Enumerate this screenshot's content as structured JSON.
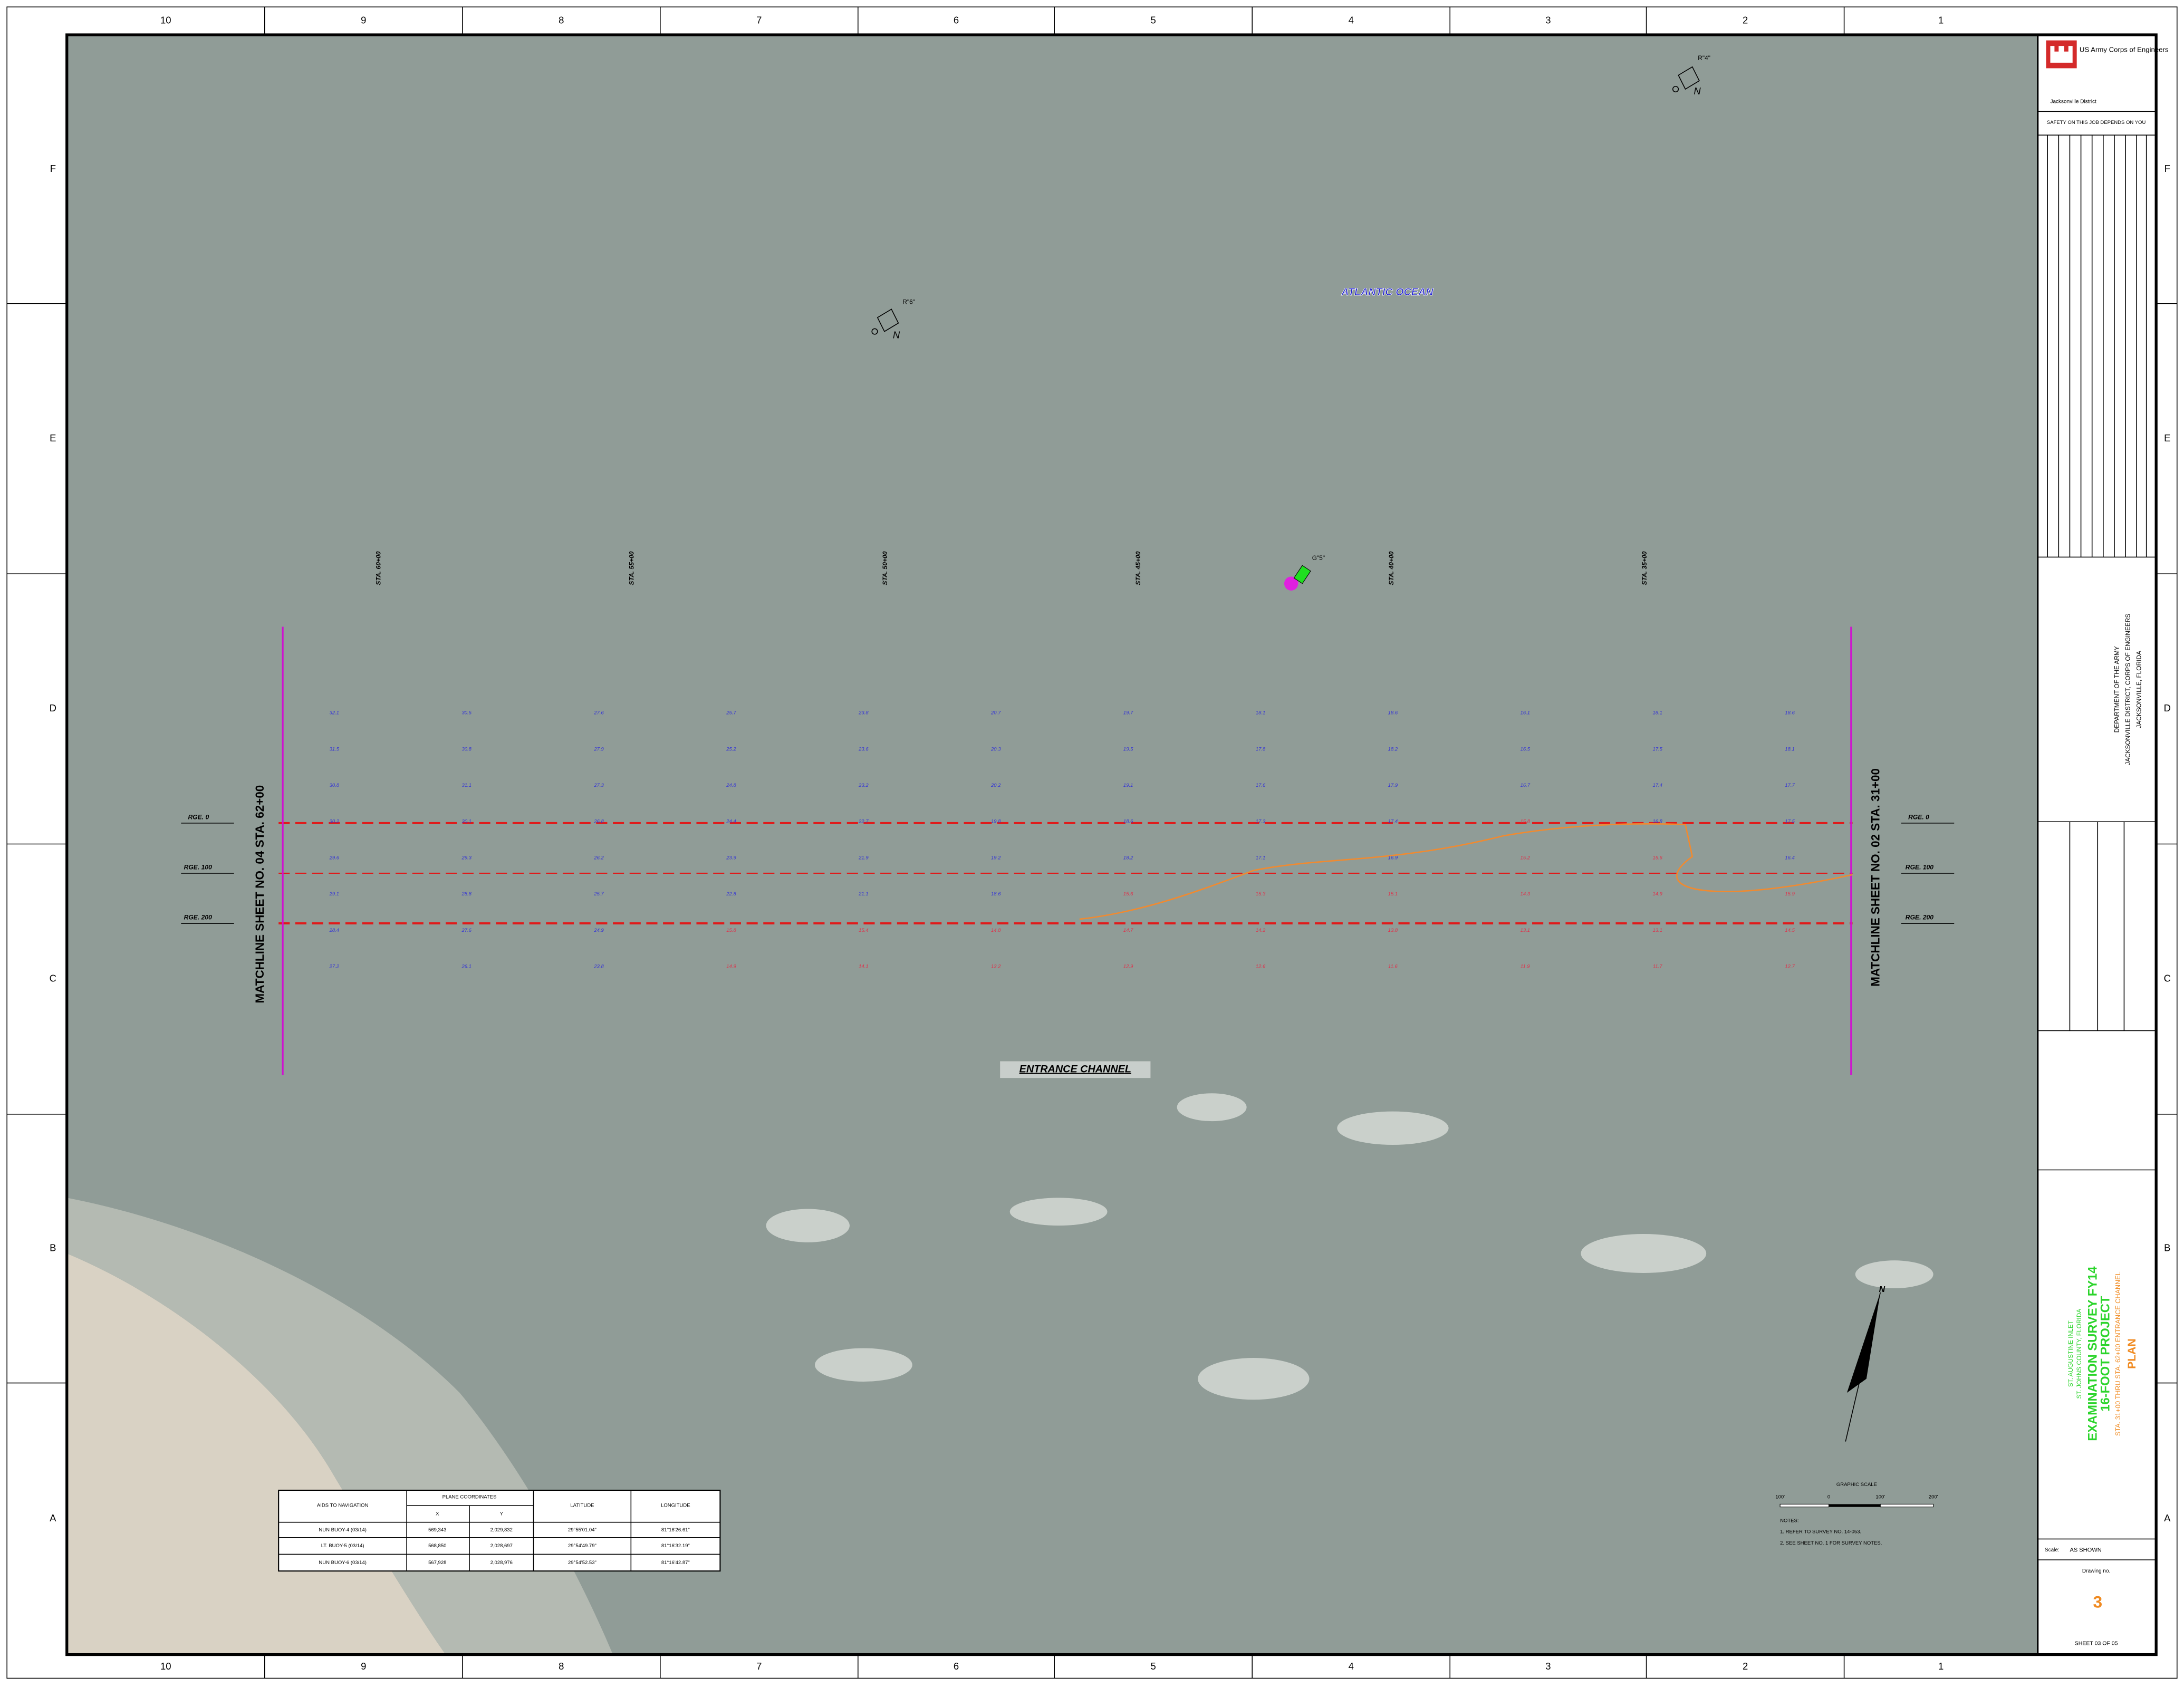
{
  "border": {
    "columns": [
      "10",
      "9",
      "8",
      "7",
      "6",
      "5",
      "4",
      "3",
      "2",
      "1"
    ],
    "rows": [
      "F",
      "E",
      "D",
      "C",
      "B",
      "A"
    ]
  },
  "map": {
    "ocean": "ATLANTIC OCEAN",
    "channel": "ENTRANCE CHANNEL",
    "stations": [
      "STA. 60+00",
      "STA. 55+00",
      "STA. 50+00",
      "STA. 45+00",
      "STA. 40+00",
      "STA. 35+00"
    ],
    "ranges": [
      "RGE. 0",
      "RGE. 100",
      "RGE. 200"
    ],
    "matchlines": [
      "MATCHLINE SHEET NO. 04 STA. 62+00",
      "MATCHLINE SHEET NO. 02 STA. 31+00"
    ],
    "buoys": [
      "R\"6\"",
      "R\"4\"",
      "G\"5\""
    ],
    "north": "N"
  },
  "soundings": {
    "deep_color": "#3434d6",
    "shallow_color": "#e0304a",
    "columns": [
      {
        "deep": [
          32.1,
          31.5,
          30.8,
          30.2,
          29.6,
          29.1,
          28.4,
          27.2
        ],
        "shallow": []
      },
      {
        "deep": [
          30.5,
          30.8,
          31.1,
          30.1,
          29.3,
          28.8,
          27.6,
          26.1
        ],
        "shallow": []
      },
      {
        "deep": [
          27.6,
          27.9,
          27.3,
          26.8,
          26.2,
          25.7,
          24.9,
          23.8
        ],
        "shallow": []
      },
      {
        "deep": [
          25.7,
          25.2,
          24.8,
          24.4,
          23.9,
          22.8
        ],
        "shallow": [
          15.8,
          14.9
        ]
      },
      {
        "deep": [
          23.8,
          23.6,
          23.2,
          22.7,
          21.9,
          21.1
        ],
        "shallow": [
          15.4,
          14.1
        ]
      },
      {
        "deep": [
          20.7,
          20.3,
          20.2,
          19.8,
          19.2,
          18.6
        ],
        "shallow": [
          14.8,
          13.2
        ]
      },
      {
        "deep": [
          19.7,
          19.5,
          19.1,
          18.6,
          18.2
        ],
        "shallow": [
          15.6,
          14.7,
          12.9
        ]
      },
      {
        "deep": [
          18.1,
          17.8,
          17.6,
          17.3,
          17.1
        ],
        "shallow": [
          15.3,
          14.2,
          12.6
        ]
      },
      {
        "deep": [
          18.6,
          18.2,
          17.9,
          17.4,
          16.9
        ],
        "shallow": [
          15.1,
          13.8,
          11.6
        ]
      },
      {
        "deep": [
          16.1,
          16.5,
          16.7
        ],
        "shallow": [
          15.8,
          15.2,
          14.3,
          13.1,
          11.9
        ]
      },
      {
        "deep": [
          18.1,
          17.5,
          17.4,
          16.8
        ],
        "shallow": [
          15.6,
          14.9,
          13.1,
          11.7
        ]
      },
      {
        "deep": [
          18.6,
          18.1,
          17.7,
          17.5,
          16.4
        ],
        "shallow": [
          15.9,
          14.5,
          12.7
        ]
      }
    ]
  },
  "table": {
    "headers": [
      "AIDS TO NAVIGATION",
      "PLANE COORDINATES",
      "LATITUDE",
      "LONGITUDE"
    ],
    "subheaders": [
      "X",
      "Y"
    ],
    "rows": [
      [
        "NUN BUOY-4 (03/14)",
        "569,343",
        "2,029,832",
        "29°55'01.04\"",
        "81°16'26.61\""
      ],
      [
        "LT. BUOY-5 (03/14)",
        "568,850",
        "2,028,697",
        "29°54'49.79\"",
        "81°16'32.19\""
      ],
      [
        "NUN BUOY-6 (03/14)",
        "567,928",
        "2,028,976",
        "29°54'52.53\"",
        "81°16'42.87\""
      ]
    ]
  },
  "scale": {
    "title": "GRAPHIC SCALE",
    "labels": [
      "100'",
      "0",
      "100'",
      "200'"
    ]
  },
  "notes": [
    "NOTES:",
    "1. REFER TO SURVEY NO. 14-053.",
    "2. SEE SHEET NO. 1 FOR SURVEY NOTES."
  ],
  "title_block": {
    "agency": "US Army Corps of Engineers",
    "district": "Jacksonville District",
    "safety": "SAFETY ON THIS JOB DEPENDS ON YOU",
    "department": [
      "DEPARTMENT OF THE ARMY",
      "JACKSONVILLE DISTRICT, CORPS OF ENGINEERS",
      "JACKSONVILLE, FLORIDA"
    ],
    "project": [
      "ST. AUGUSTINE INLET",
      "ST. JOHNS COUNTY, FLORIDA",
      "EXAMINATION SURVEY FY14",
      "16-FOOT PROJECT",
      "STA. 31+00 THRU STA. 62+00 ENTRANCE CHANNEL",
      "PLAN"
    ],
    "scale_label": "Scale:",
    "scale_value": "AS SHOWN",
    "drawing_label": "Drawing no.",
    "drawing_no": "3",
    "sheet": "SHEET 03 OF 05"
  }
}
